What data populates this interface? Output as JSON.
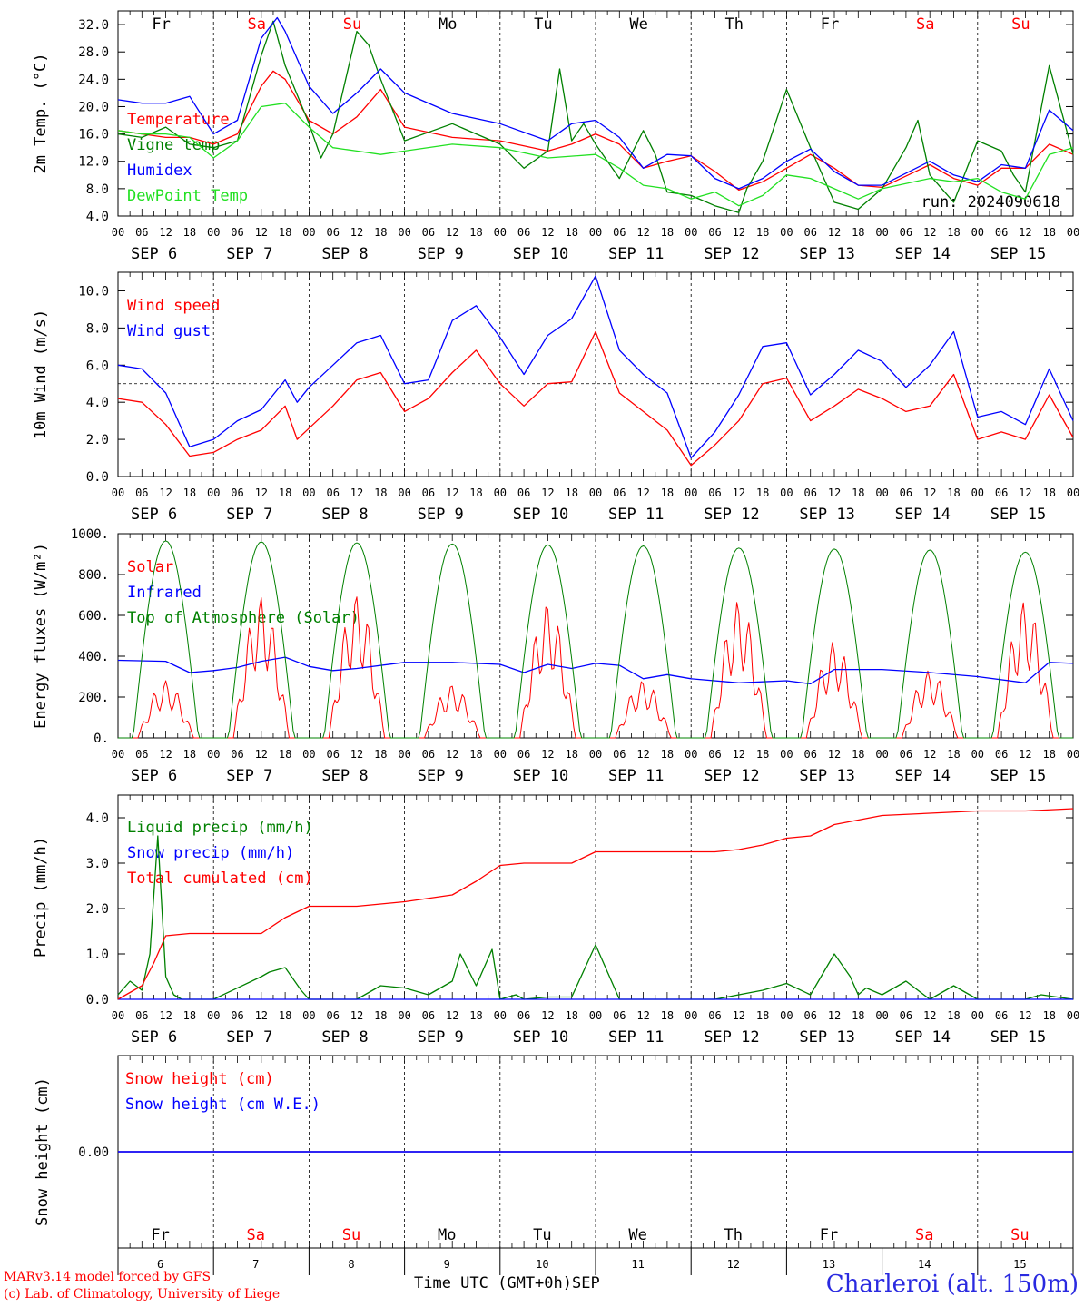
{
  "colors": {
    "red": "#ff0000",
    "green": "#008000",
    "blue": "#0000ff",
    "lime": "#22e022",
    "purple": "#7b1fa2",
    "black": "#000000"
  },
  "days": [
    {
      "abbr": "Fr",
      "weekend": false,
      "date": "SEP  6",
      "num": "6"
    },
    {
      "abbr": "Sa",
      "weekend": true,
      "date": "SEP  7",
      "num": "7"
    },
    {
      "abbr": "Su",
      "weekend": true,
      "date": "SEP  8",
      "num": "8"
    },
    {
      "abbr": "Mo",
      "weekend": false,
      "date": "SEP  9",
      "num": "9"
    },
    {
      "abbr": "Tu",
      "weekend": false,
      "date": "SEP 10",
      "num": "10"
    },
    {
      "abbr": "We",
      "weekend": false,
      "date": "SEP 11",
      "num": "11"
    },
    {
      "abbr": "Th",
      "weekend": false,
      "date": "SEP 12",
      "num": "12"
    },
    {
      "abbr": "Fr",
      "weekend": false,
      "date": "SEP 13",
      "num": "13"
    },
    {
      "abbr": "Sa",
      "weekend": true,
      "date": "SEP 14",
      "num": "14"
    },
    {
      "abbr": "Su",
      "weekend": true,
      "date": "SEP 15",
      "num": "15"
    }
  ],
  "hour_labels": [
    "00",
    "06",
    "12",
    "18"
  ],
  "final_hour_label": "00",
  "footer": {
    "credit_line1": "MARv3.14 model forced by GFS",
    "credit_line2": "(c) Lab. of Climatology, University of Liege",
    "xlabel": "Time UTC (GMT+0h)",
    "month": "SEP",
    "station": "Charleroi (alt. 150m)"
  },
  "chart_data": [
    {
      "type": "line",
      "ylabel": "2m Temp. (°C)",
      "ylim": [
        4,
        34
      ],
      "yticks": [
        "4.0",
        "8.0",
        "12.0",
        "16.0",
        "20.0",
        "24.0",
        "28.0",
        "32.0"
      ],
      "annotation": "run: 2024090618",
      "x_unit": "hours since SEP 6 00 UTC",
      "series": [
        {
          "name": "Temperature",
          "color": "red",
          "x": [
            0,
            6,
            12,
            18,
            24,
            30,
            36,
            39,
            42,
            48,
            54,
            60,
            66,
            72,
            84,
            96,
            108,
            114,
            120,
            126,
            132,
            138,
            144,
            150,
            156,
            162,
            168,
            174,
            180,
            186,
            192,
            204,
            210,
            216,
            222,
            228,
            234,
            240
          ],
          "y": [
            16.5,
            16.0,
            15.5,
            15.5,
            14.5,
            16.0,
            23.0,
            25.2,
            24.0,
            18.0,
            16.0,
            18.5,
            22.5,
            17.0,
            15.5,
            15.0,
            13.5,
            14.5,
            16.0,
            14.5,
            11.0,
            12.0,
            12.8,
            10.5,
            7.8,
            9.0,
            11.0,
            13.0,
            11.0,
            8.5,
            8.2,
            11.5,
            9.5,
            8.5,
            11.0,
            11.0,
            14.5,
            13.0
          ]
        },
        {
          "name": "Vigne temp",
          "color": "green",
          "x": [
            0,
            6,
            12,
            18,
            24,
            30,
            36,
            39,
            42,
            48,
            51,
            54,
            60,
            63,
            66,
            72,
            84,
            96,
            102,
            108,
            111,
            114,
            117,
            120,
            126,
            132,
            135,
            138,
            144,
            150,
            156,
            158,
            162,
            168,
            174,
            180,
            186,
            192,
            198,
            201,
            204,
            210,
            216,
            222,
            225,
            228,
            234,
            240
          ],
          "y": [
            16.0,
            15.5,
            17.0,
            14.5,
            14.0,
            15.0,
            27.5,
            32.5,
            26.0,
            17.5,
            12.5,
            16.0,
            31.0,
            29.0,
            24.0,
            15.0,
            17.5,
            14.5,
            11.0,
            13.5,
            25.5,
            15.0,
            17.5,
            14.5,
            9.5,
            16.5,
            13.0,
            7.5,
            7.0,
            5.5,
            4.5,
            8.0,
            12.0,
            22.5,
            14.0,
            6.0,
            5.0,
            8.0,
            14.0,
            18.0,
            10.0,
            6.0,
            15.0,
            13.5,
            10.0,
            7.5,
            26.0,
            13.0
          ]
        },
        {
          "name": "Humidex",
          "color": "blue",
          "x": [
            0,
            6,
            12,
            18,
            24,
            30,
            36,
            40,
            42,
            48,
            54,
            60,
            66,
            72,
            84,
            96,
            108,
            114,
            120,
            126,
            132,
            138,
            144,
            150,
            156,
            162,
            168,
            174,
            180,
            186,
            192,
            204,
            210,
            216,
            222,
            228,
            234,
            240
          ],
          "y": [
            21.0,
            20.5,
            20.5,
            21.5,
            16.0,
            18.0,
            30.0,
            33.0,
            31.0,
            23.0,
            19.0,
            22.0,
            25.5,
            22.0,
            19.0,
            17.5,
            15.0,
            17.5,
            18.0,
            15.5,
            11.0,
            13.0,
            12.8,
            9.5,
            8.0,
            9.5,
            12.0,
            13.8,
            10.5,
            8.5,
            8.5,
            12.0,
            10.0,
            9.0,
            11.5,
            11.0,
            19.5,
            16.5
          ]
        },
        {
          "name": "DewPoint Temp",
          "color": "lime",
          "x": [
            0,
            6,
            12,
            18,
            24,
            30,
            36,
            42,
            48,
            54,
            60,
            66,
            72,
            84,
            96,
            108,
            120,
            126,
            132,
            138,
            144,
            150,
            156,
            162,
            168,
            174,
            180,
            186,
            192,
            204,
            210,
            216,
            222,
            228,
            234,
            240
          ],
          "y": [
            16.5,
            16.0,
            16.0,
            15.5,
            12.5,
            15.0,
            20.0,
            20.5,
            17.0,
            14.0,
            13.5,
            13.0,
            13.5,
            14.5,
            14.0,
            12.5,
            13.0,
            11.0,
            8.5,
            8.0,
            6.5,
            7.5,
            5.5,
            7.0,
            10.0,
            9.5,
            8.0,
            6.5,
            8.0,
            9.5,
            9.0,
            9.5,
            7.5,
            6.5,
            13.0,
            14.0
          ]
        }
      ]
    },
    {
      "type": "line",
      "ylabel": "10m Wind (m/s)",
      "ylim": [
        0,
        11
      ],
      "yticks": [
        "0.0",
        "2.0",
        "4.0",
        "6.0",
        "8.0",
        "10.0"
      ],
      "reference_line": 5.0,
      "x_unit": "hours since SEP 6 00 UTC",
      "series": [
        {
          "name": "Wind speed",
          "color": "red",
          "x": [
            0,
            6,
            12,
            18,
            24,
            30,
            36,
            42,
            45,
            48,
            54,
            60,
            66,
            72,
            78,
            84,
            90,
            96,
            102,
            108,
            114,
            120,
            126,
            132,
            138,
            144,
            150,
            156,
            162,
            168,
            174,
            180,
            186,
            192,
            198,
            204,
            210,
            216,
            222,
            228,
            234,
            240
          ],
          "y": [
            4.2,
            4.0,
            2.8,
            1.1,
            1.3,
            2.0,
            2.5,
            3.8,
            2.0,
            2.6,
            3.8,
            5.2,
            5.6,
            3.5,
            4.2,
            5.6,
            6.8,
            5.0,
            3.8,
            5.0,
            5.1,
            7.8,
            4.5,
            3.5,
            2.5,
            0.6,
            1.7,
            3.0,
            5.0,
            5.3,
            3.0,
            3.8,
            4.7,
            4.2,
            3.5,
            3.8,
            5.5,
            2.0,
            2.4,
            2.0,
            4.4,
            2.1
          ]
        },
        {
          "name": "Wind gust",
          "color": "blue",
          "x": [
            0,
            6,
            12,
            18,
            24,
            30,
            36,
            42,
            45,
            48,
            54,
            60,
            66,
            72,
            78,
            84,
            90,
            96,
            102,
            108,
            114,
            120,
            126,
            132,
            138,
            144,
            150,
            156,
            162,
            168,
            174,
            180,
            186,
            192,
            198,
            204,
            210,
            216,
            222,
            228,
            234,
            240
          ],
          "y": [
            6.0,
            5.8,
            4.5,
            1.6,
            2.0,
            3.0,
            3.6,
            5.2,
            4.0,
            4.8,
            6.0,
            7.2,
            7.6,
            5.0,
            5.2,
            8.4,
            9.2,
            7.5,
            5.5,
            7.6,
            8.5,
            10.8,
            6.8,
            5.5,
            4.5,
            1.0,
            2.4,
            4.4,
            7.0,
            7.2,
            4.4,
            5.5,
            6.8,
            6.2,
            4.8,
            6.0,
            7.8,
            3.2,
            3.5,
            2.8,
            5.8,
            3.0
          ]
        }
      ]
    },
    {
      "type": "line",
      "ylabel": "Energy fluxes (W/m²)",
      "ylim": [
        0,
        1000
      ],
      "yticks": [
        "0.",
        "200.",
        "400.",
        "600.",
        "800.",
        "1000."
      ],
      "x_unit": "hours since SEP 6 00 UTC",
      "series": [
        {
          "name": "Solar",
          "color": "red",
          "day_peaks": [
            280,
            690,
            700,
            260,
            660,
            280,
            670,
            470,
            330,
            670
          ]
        },
        {
          "name": "Infrared",
          "color": "blue",
          "x": [
            0,
            12,
            18,
            24,
            30,
            36,
            42,
            48,
            54,
            60,
            72,
            84,
            96,
            102,
            108,
            114,
            120,
            126,
            132,
            138,
            144,
            156,
            168,
            174,
            180,
            192,
            204,
            216,
            228,
            234,
            240
          ],
          "y": [
            380,
            375,
            320,
            330,
            345,
            375,
            395,
            350,
            330,
            340,
            370,
            370,
            360,
            320,
            360,
            340,
            365,
            355,
            290,
            310,
            290,
            270,
            280,
            265,
            335,
            335,
            320,
            300,
            270,
            370,
            365
          ]
        },
        {
          "name": "Top of Atmosphere (Solar)",
          "color": "green",
          "day_peaks": [
            965,
            960,
            955,
            950,
            945,
            940,
            930,
            925,
            920,
            910
          ]
        }
      ]
    },
    {
      "type": "line",
      "ylabel": "Precip (mm/h)",
      "ylim": [
        0,
        4.5
      ],
      "yticks": [
        "0.0",
        "1.0",
        "2.0",
        "3.0",
        "4.0"
      ],
      "x_unit": "hours since SEP 6 00 UTC",
      "series": [
        {
          "name": "Liquid precip (mm/h)",
          "color": "green",
          "x": [
            0,
            3,
            6,
            8,
            10,
            12,
            14,
            16,
            18,
            22,
            24,
            36,
            38,
            42,
            46,
            48,
            50,
            60,
            66,
            72,
            78,
            84,
            86,
            90,
            94,
            96,
            100,
            102,
            108,
            114,
            120,
            126,
            138,
            150,
            156,
            162,
            168,
            174,
            180,
            184,
            186,
            188,
            192,
            198,
            204,
            210,
            216,
            228,
            232,
            240
          ],
          "y": [
            0.1,
            0.4,
            0.2,
            1.0,
            3.6,
            0.5,
            0.1,
            0,
            0,
            0,
            0,
            0.5,
            0.6,
            0.7,
            0.2,
            0,
            0,
            0,
            0.3,
            0.25,
            0.1,
            0.4,
            1.0,
            0.3,
            1.1,
            0,
            0.1,
            0,
            0.05,
            0.05,
            1.2,
            0,
            0,
            0,
            0.1,
            0.2,
            0.35,
            0.1,
            1.0,
            0.5,
            0.1,
            0.25,
            0.1,
            0.4,
            0,
            0.3,
            0,
            0,
            0.1,
            0
          ]
        },
        {
          "name": "Snow precip (mm/h)",
          "color": "blue",
          "x": [
            0,
            240
          ],
          "y": [
            0,
            0
          ]
        },
        {
          "name": "Total cumulated (cm)",
          "color": "red",
          "x": [
            0,
            6,
            9,
            12,
            18,
            24,
            30,
            36,
            42,
            48,
            54,
            60,
            66,
            72,
            84,
            90,
            96,
            102,
            108,
            114,
            120,
            126,
            132,
            138,
            144,
            150,
            156,
            162,
            168,
            174,
            180,
            186,
            192,
            204,
            216,
            228,
            240
          ],
          "y": [
            0,
            0.3,
            0.8,
            1.4,
            1.45,
            1.45,
            1.45,
            1.45,
            1.8,
            2.05,
            2.05,
            2.05,
            2.1,
            2.15,
            2.3,
            2.6,
            2.95,
            3.0,
            3.0,
            3.0,
            3.25,
            3.25,
            3.25,
            3.25,
            3.25,
            3.25,
            3.3,
            3.4,
            3.55,
            3.6,
            3.85,
            3.95,
            4.05,
            4.1,
            4.15,
            4.15,
            4.2
          ]
        }
      ]
    },
    {
      "type": "line",
      "ylabel": "Snow height (cm)",
      "ylim": [
        -1,
        1
      ],
      "yticks": [
        "0.00"
      ],
      "series": [
        {
          "name": "Snow height (cm)",
          "color": "red",
          "x": [
            0,
            240
          ],
          "y": [
            0,
            0
          ]
        },
        {
          "name": "Snow height (cm W.E.)",
          "color": "blue",
          "x": [
            0,
            240
          ],
          "y": [
            0,
            0
          ]
        }
      ]
    }
  ]
}
